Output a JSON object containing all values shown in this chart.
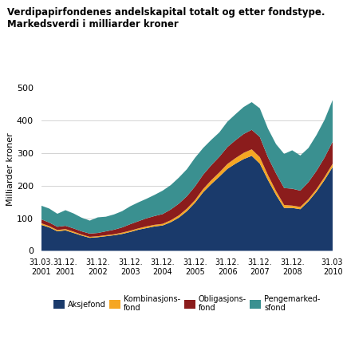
{
  "title_line1": "Verdipapirfondenes andelskapital totalt og etter fondstype.",
  "title_line2": "Markedsverdi i milliarder kroner",
  "ylabel": "Milliarder kroner",
  "ylim": [
    0,
    500
  ],
  "yticks": [
    0,
    100,
    200,
    300,
    400,
    500
  ],
  "colors": [
    "#1a3a6b",
    "#f5a623",
    "#8b1c1c",
    "#3a9090"
  ],
  "legend_labels": [
    "Aksjefond",
    "Kombinasjons-\nfond",
    "Obligasjons-\nfond",
    "Pengemarked-\nsfond"
  ],
  "tick_positions": [
    0,
    3,
    7,
    11,
    15,
    19,
    23,
    27,
    31,
    36
  ],
  "tick_labels": [
    "31.03.\n2001",
    "31.12.\n2001",
    "31.12.\n2002",
    "31.12.\n2003",
    "31.12.\n2004",
    "31.12.\n2005",
    "31.12.\n2006",
    "31.12.\n2007",
    "31.12.\n2008",
    "31.03.\n2010"
  ],
  "aksjefond": [
    80,
    72,
    60,
    63,
    55,
    47,
    40,
    42,
    45,
    48,
    52,
    58,
    65,
    70,
    75,
    78,
    88,
    102,
    122,
    148,
    180,
    205,
    228,
    252,
    268,
    282,
    292,
    268,
    218,
    172,
    132,
    132,
    128,
    152,
    182,
    218,
    258
  ],
  "kombinasjonsfond": [
    5,
    4,
    4,
    4,
    4,
    3,
    3,
    3,
    3,
    3,
    4,
    4,
    4,
    5,
    5,
    5,
    6,
    7,
    8,
    8,
    10,
    12,
    13,
    15,
    17,
    19,
    20,
    20,
    15,
    12,
    9,
    7,
    7,
    7,
    8,
    9,
    10
  ],
  "obligasjonsfond": [
    12,
    11,
    10,
    10,
    10,
    10,
    10,
    10,
    12,
    14,
    16,
    20,
    22,
    25,
    27,
    30,
    33,
    36,
    38,
    42,
    44,
    46,
    48,
    52,
    55,
    58,
    60,
    62,
    55,
    54,
    52,
    52,
    50,
    52,
    56,
    60,
    68
  ],
  "pengemarkedsfond": [
    42,
    43,
    40,
    48,
    46,
    42,
    40,
    48,
    45,
    47,
    50,
    55,
    58,
    60,
    65,
    72,
    75,
    80,
    83,
    88,
    82,
    78,
    75,
    78,
    80,
    83,
    85,
    88,
    88,
    90,
    105,
    118,
    108,
    105,
    110,
    116,
    128
  ]
}
